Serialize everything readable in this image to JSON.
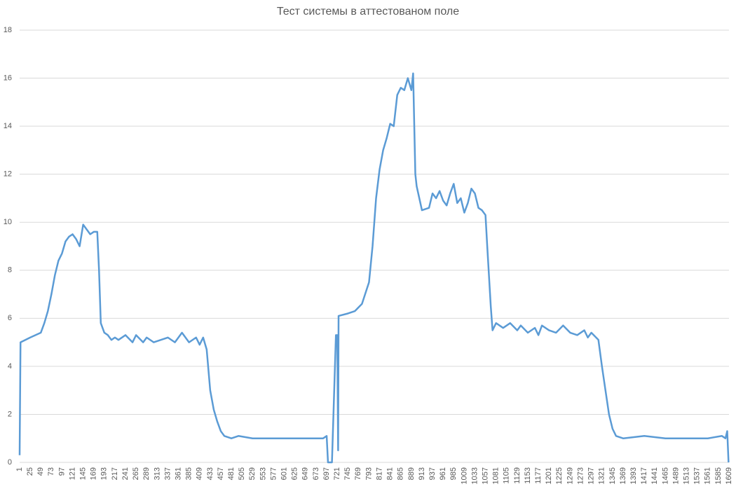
{
  "chart_data": {
    "type": "line",
    "title": "Тест системы в аттестованом поле",
    "x": [
      1,
      3,
      25,
      49,
      57,
      65,
      73,
      81,
      89,
      97,
      105,
      113,
      121,
      129,
      137,
      145,
      153,
      161,
      169,
      177,
      181,
      185,
      193,
      201,
      209,
      217,
      225,
      241,
      257,
      265,
      281,
      289,
      305,
      321,
      337,
      353,
      369,
      385,
      401,
      409,
      417,
      425,
      433,
      441,
      449,
      457,
      465,
      481,
      497,
      529,
      561,
      593,
      625,
      657,
      689,
      697,
      700,
      704,
      709,
      718,
      721,
      723,
      724,
      745,
      761,
      777,
      793,
      801,
      809,
      817,
      825,
      833,
      841,
      849,
      857,
      865,
      873,
      881,
      889,
      893,
      898,
      901,
      913,
      929,
      937,
      945,
      953,
      961,
      969,
      977,
      985,
      993,
      1001,
      1009,
      1017,
      1025,
      1033,
      1041,
      1049,
      1057,
      1061,
      1069,
      1073,
      1081,
      1097,
      1113,
      1129,
      1137,
      1153,
      1169,
      1177,
      1185,
      1201,
      1217,
      1233,
      1249,
      1265,
      1281,
      1289,
      1297,
      1313,
      1321,
      1329,
      1337,
      1345,
      1353,
      1369,
      1417,
      1465,
      1513,
      1561,
      1593,
      1601,
      1605,
      1608
    ],
    "values": [
      0.3,
      5.0,
      5.2,
      5.4,
      5.8,
      6.3,
      7.0,
      7.8,
      8.4,
      8.7,
      9.2,
      9.4,
      9.5,
      9.3,
      9.0,
      9.9,
      9.7,
      9.5,
      9.6,
      9.6,
      8.0,
      5.8,
      5.4,
      5.3,
      5.1,
      5.2,
      5.1,
      5.3,
      5.0,
      5.3,
      5.0,
      5.2,
      5.0,
      5.1,
      5.2,
      5.0,
      5.4,
      5.0,
      5.2,
      4.9,
      5.2,
      4.7,
      3.0,
      2.2,
      1.7,
      1.3,
      1.1,
      1.0,
      1.1,
      1.0,
      1.0,
      1.0,
      1.0,
      1.0,
      1.0,
      1.1,
      0,
      0,
      0,
      5.3,
      5.3,
      0.5,
      6.1,
      6.2,
      6.3,
      6.6,
      7.5,
      9.0,
      11.0,
      12.2,
      13.0,
      13.5,
      14.1,
      14.0,
      15.3,
      15.6,
      15.5,
      16.0,
      15.5,
      16.2,
      12.0,
      11.5,
      10.5,
      10.6,
      11.2,
      11.0,
      11.3,
      10.9,
      10.7,
      11.2,
      11.6,
      10.8,
      11.0,
      10.4,
      10.8,
      11.4,
      11.2,
      10.6,
      10.5,
      10.3,
      9.0,
      6.5,
      5.5,
      5.8,
      5.6,
      5.8,
      5.5,
      5.7,
      5.4,
      5.6,
      5.3,
      5.7,
      5.5,
      5.4,
      5.7,
      5.4,
      5.3,
      5.5,
      5.2,
      5.4,
      5.1,
      4.0,
      3.0,
      2.0,
      1.4,
      1.1,
      1.0,
      1.1,
      1.0,
      1.0,
      1.0,
      1.1,
      1.0,
      1.3,
      0
    ],
    "color": "#5b9bd5",
    "xlim": [
      1,
      1609
    ],
    "xticks": [
      1,
      25,
      49,
      73,
      97,
      121,
      145,
      169,
      193,
      217,
      241,
      265,
      289,
      313,
      337,
      361,
      385,
      409,
      433,
      457,
      481,
      505,
      529,
      553,
      577,
      601,
      625,
      649,
      673,
      697,
      721,
      745,
      769,
      793,
      817,
      841,
      865,
      889,
      913,
      937,
      961,
      985,
      1009,
      1033,
      1057,
      1081,
      1105,
      1129,
      1153,
      1177,
      1201,
      1225,
      1249,
      1273,
      1297,
      1321,
      1345,
      1369,
      1393,
      1417,
      1441,
      1465,
      1489,
      1513,
      1537,
      1561,
      1585,
      1609
    ],
    "ylim": [
      0,
      18
    ],
    "yticks": [
      0,
      2,
      4,
      6,
      8,
      10,
      12,
      14,
      16,
      18
    ],
    "grid": true
  }
}
